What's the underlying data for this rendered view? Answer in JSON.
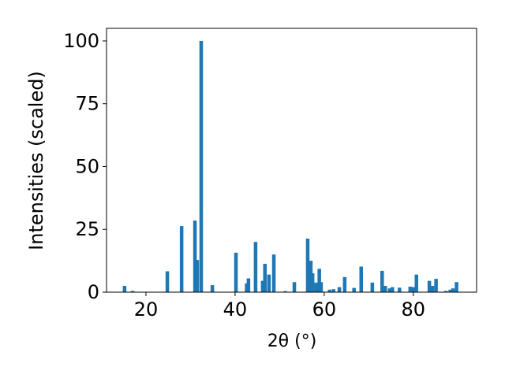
{
  "chart_data": {
    "type": "bar",
    "color": "#1f77b4",
    "x_label": "2θ (°)",
    "y_label": "Intensities (scaled)",
    "x": [
      15.2,
      17.0,
      24.8,
      28.0,
      31.0,
      31.5,
      32.4,
      34.9,
      40.2,
      42.6,
      43.0,
      44.6,
      46.2,
      46.7,
      47.6,
      48.7,
      51.3,
      53.3,
      56.3,
      57.0,
      57.4,
      58.2,
      58.9,
      59.3,
      61.2,
      62.1,
      63.4,
      64.6,
      66.7,
      68.3,
      70.8,
      73.0,
      73.7,
      74.7,
      75.3,
      76.9,
      79.3,
      80.0,
      80.7,
      83.6,
      84.3,
      85.1,
      87.3,
      88.3,
      88.9,
      89.7
    ],
    "values": [
      2.5,
      0.5,
      8.3,
      26.3,
      28.5,
      12.8,
      100,
      2.8,
      15.7,
      3.5,
      5.5,
      20,
      4.5,
      11.3,
      7,
      15,
      0.4,
      4,
      21.3,
      12.5,
      7.5,
      3.8,
      9.3,
      4,
      1,
      1.2,
      2,
      6,
      1.7,
      10.2,
      3.8,
      8.5,
      2.5,
      1.5,
      2,
      1.8,
      2.2,
      2,
      7,
      4.5,
      2.5,
      5.3,
      0.5,
      1,
      1.5,
      4
    ],
    "xlim": [
      11.15,
      94.2
    ],
    "xticks": [
      20,
      40,
      60,
      80
    ],
    "ylim": [
      0,
      105
    ],
    "yticks": [
      0,
      25,
      50,
      75,
      100
    ]
  }
}
